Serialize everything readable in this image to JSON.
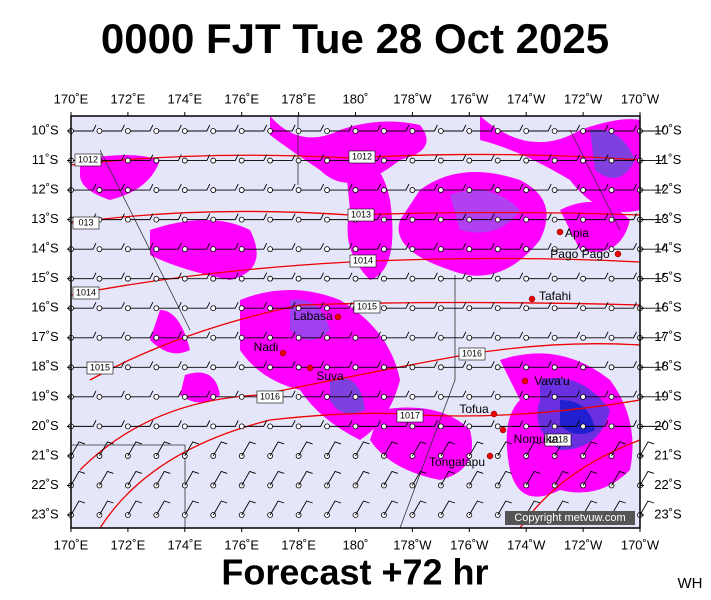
{
  "title": "0000 FJT Tue 28 Oct 2025",
  "footer": "Forecast +72 hr",
  "corner": "WH",
  "copyright": "Copyright metvuw.com",
  "longitude_labels": [
    "170˚E",
    "172˚E",
    "174˚E",
    "176˚E",
    "178˚E",
    "180˚",
    "178˚W",
    "176˚W",
    "174˚W",
    "172˚W",
    "170˚W"
  ],
  "latitude_labels": [
    "10˚S",
    "11˚S",
    "12˚S",
    "13˚S",
    "14˚S",
    "15˚S",
    "16˚S",
    "17˚S",
    "18˚S",
    "19˚S",
    "20˚S",
    "21˚S",
    "22˚S",
    "23˚S"
  ],
  "places": [
    "Apia",
    "Pago Pago",
    "Tafahi",
    "Labasa",
    "Nadi",
    "Suva",
    "Vava'u",
    "Tofua",
    "Nomuka",
    "Tongatapu"
  ],
  "isobar_labels": [
    "1012",
    "1012",
    "013",
    "1013",
    "1014",
    "1014",
    "1015",
    "1015",
    "1016",
    "1016",
    "1017",
    "1018"
  ]
}
